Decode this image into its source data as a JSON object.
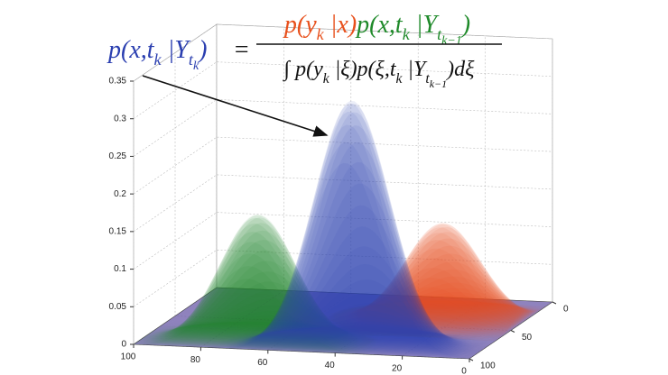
{
  "chart_data": {
    "type": "surface",
    "xlim": [
      0,
      100
    ],
    "xticks": [
      100,
      80,
      60,
      40,
      20,
      0
    ],
    "ylim": [
      0,
      100
    ],
    "yticks": [
      0,
      50,
      100
    ],
    "zlim": [
      0,
      0.35
    ],
    "zticks": [
      0,
      0.05,
      0.1,
      0.15,
      0.2,
      0.25,
      0.3,
      0.35
    ],
    "grid": true,
    "series": [
      {
        "color": "#e8501c",
        "x": [
          23
        ],
        "y": [
          39
        ],
        "values": [
          0.13
        ]
      },
      {
        "color": "#1f8a2a",
        "x": [
          66
        ],
        "y": [
          88
        ],
        "values": [
          0.17
        ]
      },
      {
        "color": "#2b3fb0",
        "x": [
          37
        ],
        "y": [
          92
        ],
        "values": [
          0.33
        ]
      }
    ],
    "formula": {
      "lhs": [
        {
          "text": "p(x,t",
          "level": "base"
        },
        {
          "text": "k",
          "level": "sub"
        },
        {
          "text": " |Y",
          "level": "base"
        },
        {
          "text": "t",
          "level": "sub"
        },
        {
          "text": "k",
          "level": "subsub"
        },
        {
          "text": ")",
          "level": "base"
        }
      ],
      "equals": "=",
      "numerator": [
        {
          "text": "p(y",
          "level": "base",
          "color": "#e8501c"
        },
        {
          "text": "k",
          "level": "sub",
          "color": "#e8501c"
        },
        {
          "text": " |x)",
          "level": "base",
          "color": "#e8501c"
        },
        {
          "text": "p(x,t",
          "level": "base",
          "color": "#1f8a2a"
        },
        {
          "text": "k",
          "level": "sub",
          "color": "#1f8a2a"
        },
        {
          "text": " |Y",
          "level": "base",
          "color": "#1f8a2a"
        },
        {
          "text": "t",
          "level": "sub",
          "color": "#1f8a2a"
        },
        {
          "text": "k−1",
          "level": "subsub",
          "color": "#1f8a2a"
        },
        {
          "text": ")",
          "level": "base",
          "color": "#1f8a2a"
        }
      ],
      "denominator": [
        {
          "text": "∫ p(y",
          "level": "base"
        },
        {
          "text": "k",
          "level": "sub"
        },
        {
          "text": " |ξ)p(ξ,t",
          "level": "base"
        },
        {
          "text": "k",
          "level": "sub"
        },
        {
          "text": " |Y",
          "level": "base"
        },
        {
          "text": "t",
          "level": "sub"
        },
        {
          "text": "k−1",
          "level": "subsub"
        },
        {
          "text": ")dξ",
          "level": "base"
        }
      ]
    }
  }
}
